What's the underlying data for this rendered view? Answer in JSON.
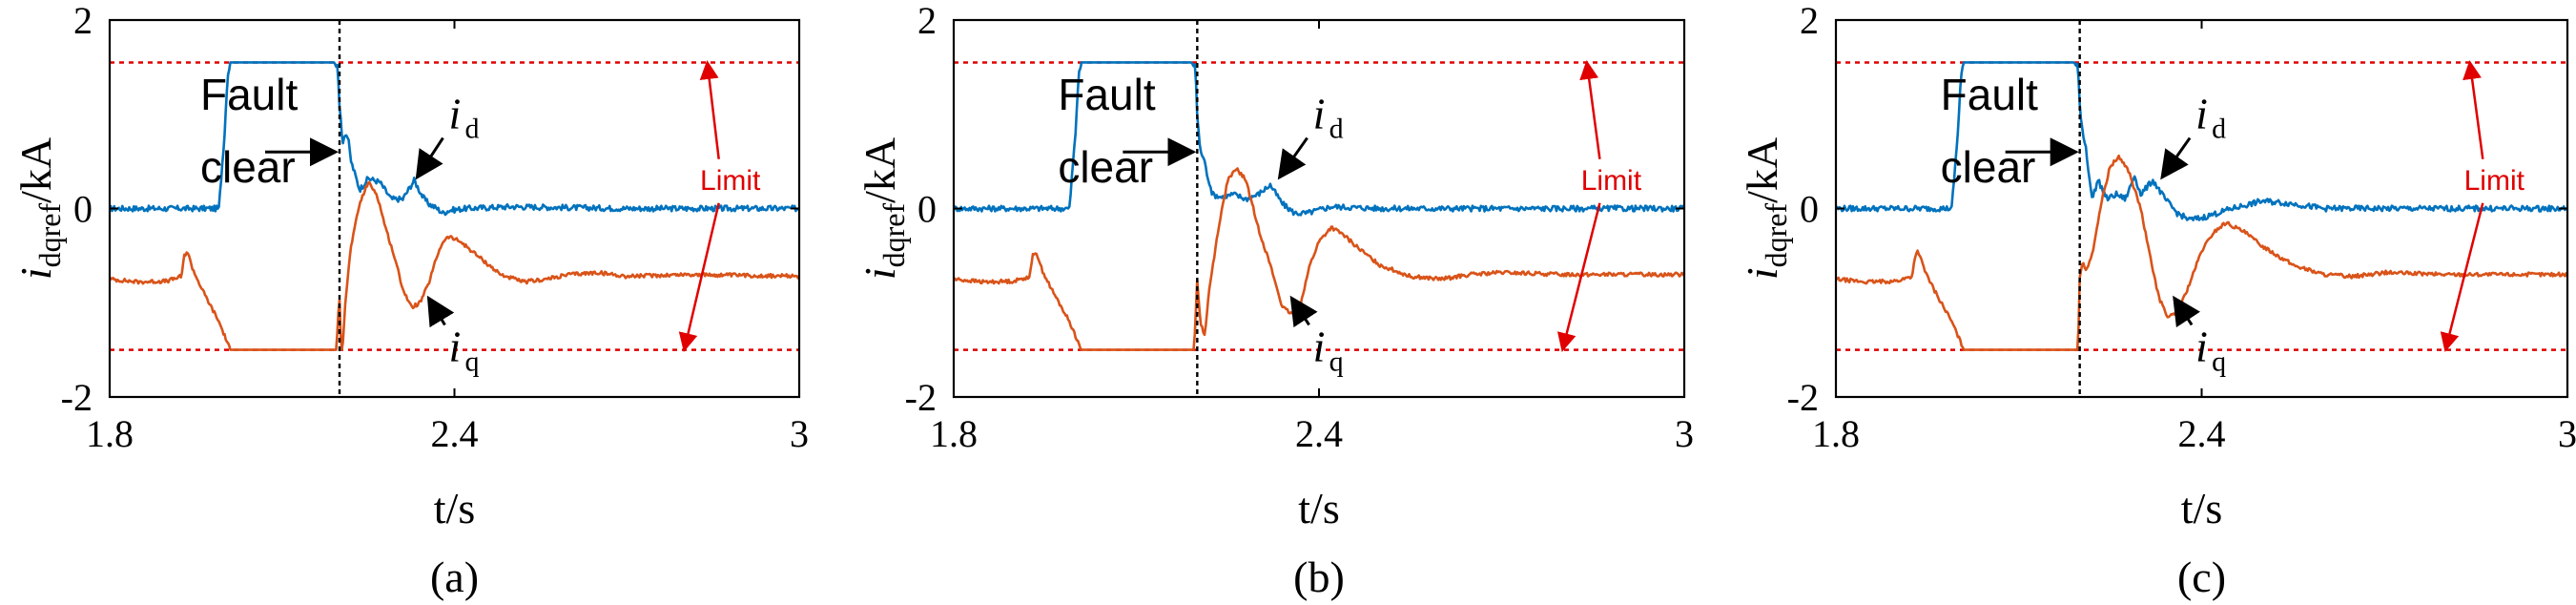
{
  "colors": {
    "id_series": "#0072BD",
    "iq_series": "#D95319",
    "limit": "#E00000",
    "fault_line": "#000000"
  },
  "chart_data": [
    {
      "type": "line",
      "caption": "(a)",
      "xlabel": "t/s",
      "ylabel_main": "i",
      "ylabel_sub": "dqref",
      "ylabel_unit": "/kA",
      "xlim": [
        1.8,
        3
      ],
      "ylim": [
        -2,
        2
      ],
      "xticks": [
        1.8,
        2.4,
        3
      ],
      "xtick_labels": [
        "1.8",
        "2.4",
        "3"
      ],
      "yticks": [
        2,
        0,
        -2
      ],
      "ytick_labels": [
        "2",
        "0",
        "-2"
      ],
      "limits": [
        1.55,
        -1.5
      ],
      "fault_clear_time": 2.2,
      "annotations": {
        "fault_line1": "Fault",
        "fault_line2": "clear",
        "id_main": "i",
        "id_sub": "d",
        "iq_main": "i",
        "iq_sub": "q",
        "limit": "Limit"
      },
      "series": [
        {
          "name": "i_d",
          "color_key": "id_series",
          "noise": 0.03,
          "x": [
            1.8,
            1.99,
            2.0,
            2.005,
            2.01,
            2.19,
            2.197,
            2.2,
            2.205,
            2.21,
            2.215,
            2.22,
            2.235,
            2.25,
            2.27,
            2.29,
            2.31,
            2.33,
            2.345,
            2.355,
            2.37,
            2.38,
            2.39,
            2.42,
            2.5,
            2.7,
            3.0
          ],
          "y": [
            0,
            0,
            0.8,
            1.4,
            1.55,
            1.55,
            1.5,
            1.1,
            0.7,
            0.8,
            0.75,
            0.5,
            0.2,
            0.32,
            0.28,
            0.1,
            0.1,
            0.3,
            0.12,
            0.05,
            0.0,
            -0.05,
            -0.02,
            0.0,
            0.02,
            0.0,
            0.0
          ]
        },
        {
          "name": "i_q",
          "color_key": "iq_series",
          "noise": 0.02,
          "x": [
            1.8,
            1.85,
            1.9,
            1.925,
            1.93,
            1.935,
            1.945,
            1.96,
            1.99,
            2.01,
            2.19,
            2.195,
            2.197,
            2.2,
            2.203,
            2.205,
            2.21,
            2.22,
            2.235,
            2.25,
            2.265,
            2.28,
            2.295,
            2.31,
            2.325,
            2.34,
            2.355,
            2.37,
            2.38,
            2.39,
            2.41,
            2.43,
            2.45,
            2.48,
            2.52,
            2.56,
            2.6,
            2.65,
            2.7,
            2.8,
            3.0
          ],
          "y": [
            -0.75,
            -0.78,
            -0.77,
            -0.72,
            -0.5,
            -0.45,
            -0.65,
            -0.85,
            -1.2,
            -1.5,
            -1.5,
            -1.5,
            -1.2,
            -0.95,
            -1.5,
            -1.5,
            -1.0,
            -0.4,
            0.05,
            0.28,
            0.15,
            -0.2,
            -0.5,
            -0.85,
            -1.05,
            -1.0,
            -0.8,
            -0.5,
            -0.35,
            -0.3,
            -0.35,
            -0.45,
            -0.55,
            -0.7,
            -0.78,
            -0.75,
            -0.7,
            -0.68,
            -0.72,
            -0.7,
            -0.72
          ]
        }
      ]
    },
    {
      "type": "line",
      "caption": "(b)",
      "xlabel": "t/s",
      "ylabel_main": "i",
      "ylabel_sub": "dqref",
      "ylabel_unit": "/kA",
      "xlim": [
        1.8,
        3
      ],
      "ylim": [
        -2,
        2
      ],
      "xticks": [
        1.8,
        2.4,
        3
      ],
      "xtick_labels": [
        "1.8",
        "2.4",
        "3"
      ],
      "yticks": [
        2,
        0,
        -2
      ],
      "ytick_labels": [
        "2",
        "0",
        "-2"
      ],
      "limits": [
        1.55,
        -1.5
      ],
      "fault_clear_time": 2.2,
      "annotations": {
        "fault_line1": "Fault",
        "fault_line2": "clear",
        "id_main": "i",
        "id_sub": "d",
        "iq_main": "i",
        "iq_sub": "q",
        "limit": "Limit"
      },
      "series": [
        {
          "name": "i_d",
          "color_key": "id_series",
          "noise": 0.03,
          "x": [
            1.8,
            1.99,
            2.0,
            2.005,
            2.01,
            2.19,
            2.197,
            2.2,
            2.205,
            2.21,
            2.215,
            2.225,
            2.24,
            2.26,
            2.28,
            2.3,
            2.32,
            2.34,
            2.36,
            2.38,
            2.42,
            2.5,
            2.7,
            3.0
          ],
          "y": [
            0,
            0,
            0.8,
            1.4,
            1.55,
            1.55,
            1.5,
            1.0,
            0.6,
            0.55,
            0.4,
            0.15,
            0.12,
            0.15,
            0.1,
            0.15,
            0.25,
            0.05,
            -0.05,
            -0.05,
            0.02,
            0.0,
            0.0,
            0.0
          ]
        },
        {
          "name": "i_q",
          "color_key": "iq_series",
          "noise": 0.02,
          "x": [
            1.8,
            1.85,
            1.9,
            1.925,
            1.93,
            1.935,
            1.945,
            1.96,
            1.99,
            2.01,
            2.19,
            2.195,
            2.2,
            2.205,
            2.212,
            2.22,
            2.235,
            2.25,
            2.265,
            2.28,
            2.3,
            2.32,
            2.34,
            2.355,
            2.37,
            2.385,
            2.4,
            2.42,
            2.44,
            2.47,
            2.5,
            2.55,
            2.6,
            2.65,
            2.7,
            2.8,
            3.0
          ],
          "y": [
            -0.75,
            -0.78,
            -0.77,
            -0.72,
            -0.5,
            -0.45,
            -0.65,
            -0.85,
            -1.2,
            -1.5,
            -1.5,
            -1.5,
            -0.75,
            -1.2,
            -1.35,
            -0.85,
            -0.2,
            0.3,
            0.42,
            0.3,
            -0.2,
            -0.6,
            -1.05,
            -1.12,
            -1.0,
            -0.6,
            -0.35,
            -0.2,
            -0.28,
            -0.45,
            -0.6,
            -0.72,
            -0.75,
            -0.7,
            -0.68,
            -0.7,
            -0.7
          ]
        }
      ]
    },
    {
      "type": "line",
      "caption": "(c)",
      "xlabel": "t/s",
      "ylabel_main": "i",
      "ylabel_sub": "dqref",
      "ylabel_unit": "/kA",
      "xlim": [
        1.8,
        3
      ],
      "ylim": [
        -2,
        2
      ],
      "xticks": [
        1.8,
        2.4,
        3
      ],
      "xtick_labels": [
        "1.8",
        "2.4",
        "3"
      ],
      "yticks": [
        2,
        0,
        -2
      ],
      "ytick_labels": [
        "2",
        "0",
        "-2"
      ],
      "limits": [
        1.55,
        -1.5
      ],
      "fault_clear_time": 2.2,
      "annotations": {
        "fault_line1": "Fault",
        "fault_line2": "clear",
        "id_main": "i",
        "id_sub": "d",
        "iq_main": "i",
        "iq_sub": "q",
        "limit": "Limit"
      },
      "series": [
        {
          "name": "i_d",
          "color_key": "id_series",
          "noise": 0.03,
          "x": [
            1.8,
            1.99,
            2.0,
            2.005,
            2.01,
            2.19,
            2.197,
            2.2,
            2.205,
            2.21,
            2.22,
            2.23,
            2.245,
            2.26,
            2.275,
            2.29,
            2.3,
            2.32,
            2.34,
            2.36,
            2.38,
            2.4,
            2.45,
            2.5,
            2.55,
            2.6,
            2.7,
            3.0
          ],
          "y": [
            0,
            0,
            0.8,
            1.4,
            1.55,
            1.55,
            1.5,
            1.1,
            0.8,
            0.65,
            0.1,
            0.3,
            0.1,
            0.15,
            0.1,
            0.35,
            0.15,
            0.3,
            0.1,
            -0.05,
            -0.12,
            -0.1,
            0.0,
            0.08,
            0.05,
            0.0,
            0.0,
            0.0
          ]
        },
        {
          "name": "i_q",
          "color_key": "iq_series",
          "noise": 0.02,
          "x": [
            1.8,
            1.85,
            1.9,
            1.925,
            1.93,
            1.935,
            1.945,
            1.96,
            1.99,
            2.01,
            2.19,
            2.197,
            2.2,
            2.205,
            2.21,
            2.22,
            2.235,
            2.25,
            2.265,
            2.28,
            2.3,
            2.315,
            2.33,
            2.345,
            2.36,
            2.38,
            2.4,
            2.42,
            2.44,
            2.47,
            2.5,
            2.55,
            2.6,
            2.65,
            2.7,
            2.8,
            3.0
          ],
          "y": [
            -0.75,
            -0.78,
            -0.77,
            -0.72,
            -0.5,
            -0.45,
            -0.65,
            -0.85,
            -1.2,
            -1.5,
            -1.5,
            -1.5,
            -0.75,
            -0.55,
            -0.65,
            -0.5,
            0.05,
            0.45,
            0.55,
            0.4,
            0.0,
            -0.5,
            -0.95,
            -1.15,
            -1.12,
            -0.8,
            -0.45,
            -0.25,
            -0.15,
            -0.25,
            -0.4,
            -0.6,
            -0.7,
            -0.72,
            -0.68,
            -0.7,
            -0.7
          ]
        }
      ]
    }
  ]
}
